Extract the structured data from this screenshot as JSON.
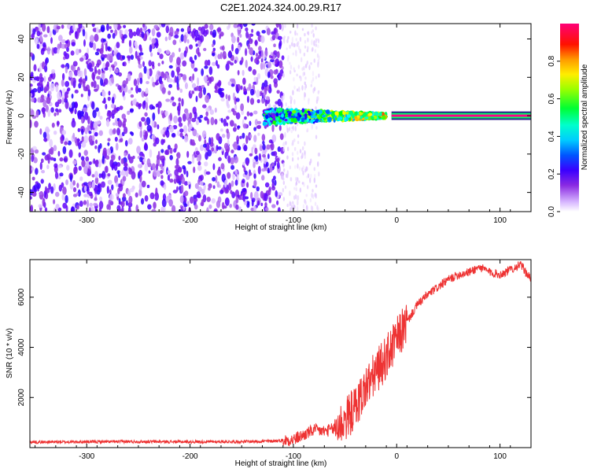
{
  "title": "C2E1.2024.324.00.29.R17",
  "chart_data": [
    {
      "type": "heatmap",
      "xlabel": "Height of straight line (km)",
      "ylabel": "Frequency (Hz)",
      "xlim": [
        -355,
        130
      ],
      "ylim": [
        -50,
        48
      ],
      "xticks": [
        -300,
        -200,
        -100,
        0,
        100
      ],
      "yticks": [
        -40,
        -20,
        0,
        20,
        40
      ],
      "colorbar": {
        "label": "Normalized spectral amplitude",
        "range": [
          0,
          1
        ],
        "ticks": [
          0.0,
          0.2,
          0.4,
          0.6,
          0.8
        ],
        "colors": [
          "#ffffff",
          "#d8b8ff",
          "#8a2be2",
          "#5a00ff",
          "#0000ff",
          "#00aaff",
          "#00ffff",
          "#00ff66",
          "#00ff00",
          "#aaff00",
          "#ffff00",
          "#ff9900",
          "#ff0000",
          "#ff0066",
          "#ff0088"
        ]
      },
      "features": [
        {
          "name": "broadband noise",
          "x_range": [
            -355,
            -110
          ],
          "y_range": [
            -50,
            48
          ],
          "level": 0.15
        },
        {
          "name": "sparse noise",
          "x_range": [
            -110,
            -75
          ],
          "y_range": [
            -50,
            48
          ],
          "level": 0.05
        },
        {
          "name": "carrier blob",
          "x_range": [
            -128,
            -10
          ],
          "y_range": [
            -6,
            4
          ],
          "level": 0.35
        },
        {
          "name": "carrier line",
          "x_range": [
            -5,
            130
          ],
          "y_range": [
            -1,
            1
          ],
          "level": 1.0
        }
      ]
    },
    {
      "type": "line",
      "xlabel": "Height of straight line (km)",
      "ylabel": "SNR (10 * v/v)",
      "xlim": [
        -355,
        130
      ],
      "ylim": [
        0,
        7500
      ],
      "xticks": [
        -300,
        -200,
        -100,
        0,
        100
      ],
      "yticks": [
        2000,
        4000,
        6000
      ],
      "color": "#ee3333",
      "x": [
        -355,
        -300,
        -250,
        -200,
        -150,
        -120,
        -100,
        -90,
        -80,
        -70,
        -60,
        -50,
        -40,
        -30,
        -20,
        -10,
        0,
        10,
        20,
        30,
        40,
        50,
        60,
        70,
        80,
        90,
        100,
        110,
        120,
        130
      ],
      "y": [
        220,
        230,
        240,
        230,
        240,
        260,
        320,
        500,
        700,
        650,
        750,
        1100,
        1600,
        2400,
        3000,
        3600,
        4300,
        5000,
        5700,
        6100,
        6400,
        6700,
        6900,
        7000,
        7200,
        7000,
        6900,
        7100,
        7300,
        6700
      ]
    }
  ]
}
